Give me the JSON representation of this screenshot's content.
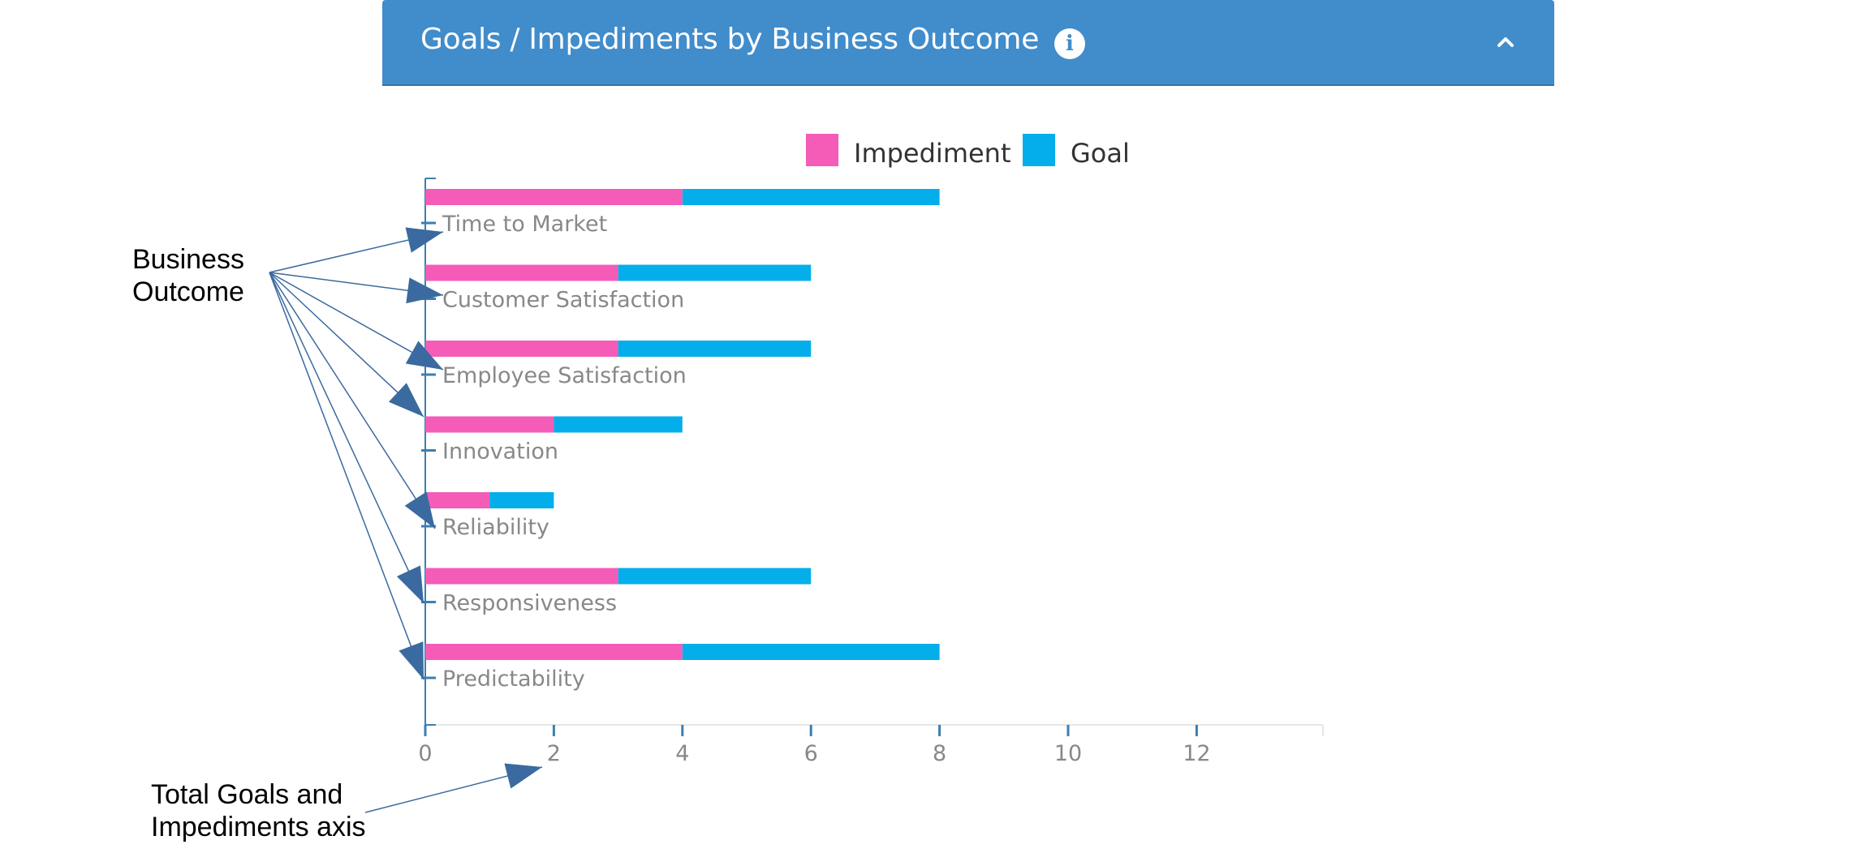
{
  "header": {
    "title": "Goals / Impediments by Business Outcome",
    "info_icon": "info-icon",
    "collapse_icon": "chevron-up-icon"
  },
  "colors": {
    "header_bg": "#418ccb",
    "impediment": "#f45cb8",
    "goal": "#04aeeb",
    "axis": "#3b7fb0"
  },
  "chart_data": {
    "type": "bar",
    "orientation": "horizontal",
    "stacked": true,
    "title": "",
    "xlabel": "",
    "ylabel": "",
    "categories": [
      "Time to Market",
      "Customer Satisfaction",
      "Employee Satisfaction",
      "Innovation",
      "Reliability",
      "Responsiveness",
      "Predictability"
    ],
    "series": [
      {
        "name": "Impediment",
        "values": [
          4,
          3,
          3,
          2,
          1,
          3,
          4
        ]
      },
      {
        "name": "Goal",
        "values": [
          4,
          3,
          3,
          2,
          1,
          3,
          4
        ]
      }
    ],
    "xlim": [
      0,
      14
    ],
    "xticks": [
      "0",
      "2",
      "4",
      "6",
      "8",
      "10",
      "12"
    ],
    "legend_position": "top-center",
    "grid": false
  },
  "annotations": {
    "business_outcome": [
      "Business",
      "Outcome"
    ],
    "total_axis": [
      "Total Goals and",
      "Impediments axis"
    ]
  }
}
